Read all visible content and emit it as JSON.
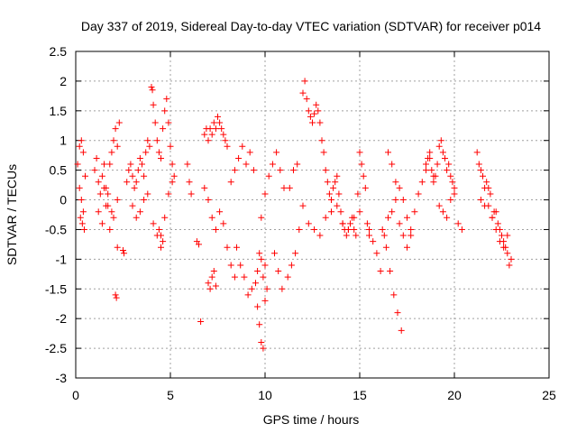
{
  "chart_data": {
    "type": "scatter",
    "title": "Day 337 of 2019, Sidereal Day-to-day VTEC variation (SDTVAR) for receiver p014",
    "xlabel": "GPS time / hours",
    "ylabel": "SDTVAR / TECUs",
    "xlim": [
      0,
      25
    ],
    "ylim": [
      -3,
      2.5
    ],
    "xticks": [
      0,
      5,
      10,
      15,
      20,
      25
    ],
    "xtick_labels": [
      "0",
      "5",
      "10",
      "15",
      "20",
      "25"
    ],
    "yticks": [
      -3,
      -2.5,
      -2,
      -1.5,
      -1,
      -0.5,
      0,
      0.5,
      1,
      1.5,
      2,
      2.5
    ],
    "ytick_labels": [
      "-3",
      "-2.5",
      "-2",
      "-1.5",
      "-1",
      "-0.5",
      "0",
      "0.5",
      "1",
      "1.5",
      "2",
      "2.5"
    ],
    "grid": true,
    "marker": "plus",
    "color": "#ff0000",
    "series": [
      {
        "name": "SDTVAR",
        "x": [
          0.1,
          0.2,
          0.3,
          0.4,
          0.5,
          0.25,
          0.35,
          0.45,
          0.2,
          0.3,
          0.4,
          1.0,
          1.1,
          1.2,
          1.3,
          1.4,
          1.5,
          1.6,
          1.7,
          1.8,
          1.9,
          2.0,
          2.1,
          2.2,
          2.3,
          1.2,
          1.4,
          1.6,
          1.8,
          2.0,
          2.2,
          1.5,
          1.7,
          1.9,
          2.1,
          2.15,
          2.2,
          2.5,
          2.55,
          2.7,
          2.8,
          2.9,
          3.0,
          3.1,
          3.2,
          3.3,
          3.4,
          3.5,
          3.6,
          3.7,
          3.8,
          3.9,
          3.0,
          3.2,
          3.4,
          3.6,
          3.8,
          4.0,
          4.05,
          4.1,
          4.2,
          4.3,
          4.4,
          4.5,
          4.6,
          4.7,
          4.8,
          4.9,
          5.0,
          5.1,
          5.2,
          4.1,
          4.3,
          4.5,
          4.7,
          4.9,
          5.1,
          4.4,
          4.5,
          4.6,
          5.9,
          6.0,
          6.1,
          6.4,
          6.5,
          6.6,
          6.8,
          6.9,
          7.0,
          7.1,
          7.2,
          7.3,
          7.4,
          7.5,
          7.6,
          7.7,
          7.8,
          7.9,
          8.0,
          6.8,
          7.0,
          7.2,
          7.4,
          7.6,
          7.8,
          8.0,
          8.2,
          8.4,
          7.0,
          7.1,
          7.2,
          7.3,
          7.4,
          8.2,
          8.4,
          8.6,
          8.8,
          9.0,
          9.2,
          9.4,
          8.5,
          8.7,
          8.9,
          9.1,
          9.3,
          9.5,
          9.6,
          9.7,
          9.8,
          9.9,
          10.0,
          10.1,
          9.6,
          9.7,
          9.8,
          9.9,
          10.0,
          9.8,
          10.0,
          10.2,
          10.4,
          10.6,
          10.8,
          11.0,
          10.5,
          10.7,
          10.9,
          11.2,
          11.4,
          11.6,
          11.8,
          12.0,
          11.3,
          11.5,
          11.7,
          12.0,
          12.1,
          12.2,
          12.3,
          12.4,
          12.5,
          12.6,
          12.7,
          12.8,
          12.9,
          13.0,
          13.1,
          13.2,
          13.3,
          13.4,
          13.5,
          13.6,
          13.7,
          13.8,
          13.9,
          14.0,
          14.1,
          14.2,
          14.3,
          14.4,
          14.5,
          14.6,
          14.7,
          14.8,
          14.9,
          15.0,
          15.1,
          15.2,
          15.3,
          15.4,
          15.5,
          12.3,
          12.6,
          12.9,
          13.2,
          13.5,
          13.8,
          14.1,
          14.4,
          14.7,
          15.0,
          15.5,
          15.7,
          15.9,
          16.1,
          16.3,
          16.5,
          16.7,
          16.9,
          17.1,
          17.3,
          17.5,
          17.7,
          17.9,
          18.1,
          18.3,
          18.5,
          18.7,
          18.9,
          16.2,
          16.4,
          16.6,
          16.8,
          17.0,
          17.2,
          16.5,
          16.7,
          16.9,
          17.1,
          17.3,
          17.5,
          17.7,
          18.5,
          18.6,
          18.7,
          18.8,
          18.9,
          19.0,
          19.1,
          19.2,
          19.3,
          19.4,
          19.5,
          19.6,
          19.7,
          19.8,
          19.9,
          20.0,
          19.2,
          19.4,
          19.6,
          19.8,
          20.0,
          20.2,
          20.4,
          21.2,
          21.4,
          21.6,
          21.8,
          22.0,
          22.2,
          22.4,
          22.6,
          22.8,
          23.0,
          21.3,
          21.5,
          21.7,
          21.9,
          22.1,
          22.3,
          22.5,
          22.7,
          22.9,
          21.4,
          21.6,
          21.8,
          22.0,
          22.2,
          22.4,
          22.6,
          22.8
        ],
        "y": [
          0.6,
          0.9,
          1.0,
          0.8,
          0.4,
          -0.3,
          -0.4,
          -0.5,
          0.2,
          0.0,
          -0.2,
          0.5,
          0.7,
          0.3,
          0.1,
          0.4,
          0.6,
          0.2,
          -0.1,
          0.6,
          0.8,
          1.0,
          1.2,
          0.9,
          1.3,
          -0.2,
          -0.4,
          -0.1,
          -0.5,
          -0.3,
          0.0,
          0.2,
          0.1,
          -0.2,
          -1.6,
          -1.65,
          -0.8,
          -0.85,
          -0.9,
          0.3,
          0.5,
          0.6,
          0.4,
          0.2,
          0.3,
          0.5,
          0.7,
          0.6,
          0.4,
          0.8,
          1.0,
          0.9,
          -0.1,
          -0.3,
          -0.2,
          0.0,
          0.1,
          1.9,
          1.85,
          1.6,
          1.3,
          1.0,
          0.8,
          0.7,
          1.2,
          1.5,
          1.7,
          1.3,
          0.9,
          0.6,
          0.4,
          -0.4,
          -0.6,
          -0.8,
          -0.3,
          0.1,
          0.3,
          -0.5,
          -0.6,
          -0.7,
          0.6,
          0.3,
          0.1,
          -0.7,
          -0.75,
          -2.05,
          1.1,
          1.2,
          1.0,
          1.2,
          1.1,
          1.3,
          1.2,
          1.4,
          1.3,
          1.2,
          1.1,
          1.0,
          0.9,
          0.2,
          0.0,
          -0.3,
          -0.5,
          -0.2,
          -0.4,
          -0.8,
          -1.1,
          -1.3,
          -1.4,
          -1.5,
          -1.3,
          -1.2,
          -1.45,
          0.3,
          0.5,
          0.7,
          0.9,
          0.6,
          0.8,
          0.5,
          -0.8,
          -1.1,
          -1.3,
          -1.6,
          -1.5,
          -1.4,
          -1.8,
          -2.1,
          -2.4,
          -2.5,
          -1.7,
          -1.5,
          -1.2,
          -0.9,
          -1.0,
          -1.3,
          -1.1,
          -0.3,
          0.1,
          0.4,
          0.6,
          0.8,
          0.5,
          0.2,
          -0.9,
          -1.2,
          -1.5,
          -1.3,
          -1.1,
          -0.9,
          -0.5,
          -0.1,
          0.2,
          0.5,
          0.6,
          1.8,
          2.0,
          1.7,
          1.5,
          1.4,
          1.3,
          1.45,
          1.6,
          1.5,
          1.3,
          1.0,
          0.8,
          0.5,
          0.3,
          0.1,
          0.0,
          0.2,
          0.3,
          0.4,
          0.1,
          -0.2,
          -0.4,
          -0.5,
          -0.6,
          -0.5,
          -0.4,
          -0.3,
          -0.5,
          -0.6,
          0.1,
          0.8,
          0.6,
          0.4,
          0.2,
          -0.4,
          -0.6,
          -0.4,
          -0.5,
          -0.6,
          -0.3,
          -0.2,
          -0.1,
          -0.4,
          -0.5,
          -0.3,
          -0.2,
          -0.5,
          -0.7,
          -0.9,
          -1.2,
          -0.6,
          -0.3,
          -0.2,
          0.0,
          -0.4,
          -0.6,
          -0.8,
          -0.5,
          -0.2,
          0.1,
          0.3,
          0.5,
          0.7,
          0.4,
          -0.5,
          -0.8,
          -1.2,
          -1.6,
          -1.9,
          -2.2,
          0.8,
          0.6,
          0.3,
          0.2,
          0.0,
          -0.3,
          -0.6,
          0.6,
          0.7,
          0.8,
          0.5,
          0.3,
          0.4,
          0.6,
          0.9,
          1.0,
          0.8,
          0.7,
          0.5,
          0.6,
          0.4,
          0.3,
          0.2,
          -0.1,
          -0.2,
          -0.3,
          0.0,
          0.1,
          -0.4,
          -0.5,
          0.8,
          0.5,
          0.2,
          -0.1,
          -0.3,
          -0.2,
          -0.5,
          -0.7,
          -0.9,
          -1.0,
          0.6,
          0.4,
          0.3,
          0.1,
          -0.2,
          -0.4,
          -0.6,
          -0.8,
          -1.1,
          0.0,
          -0.1,
          0.2,
          -0.3,
          -0.5,
          -0.7,
          -0.8,
          -0.6
        ]
      }
    ]
  }
}
